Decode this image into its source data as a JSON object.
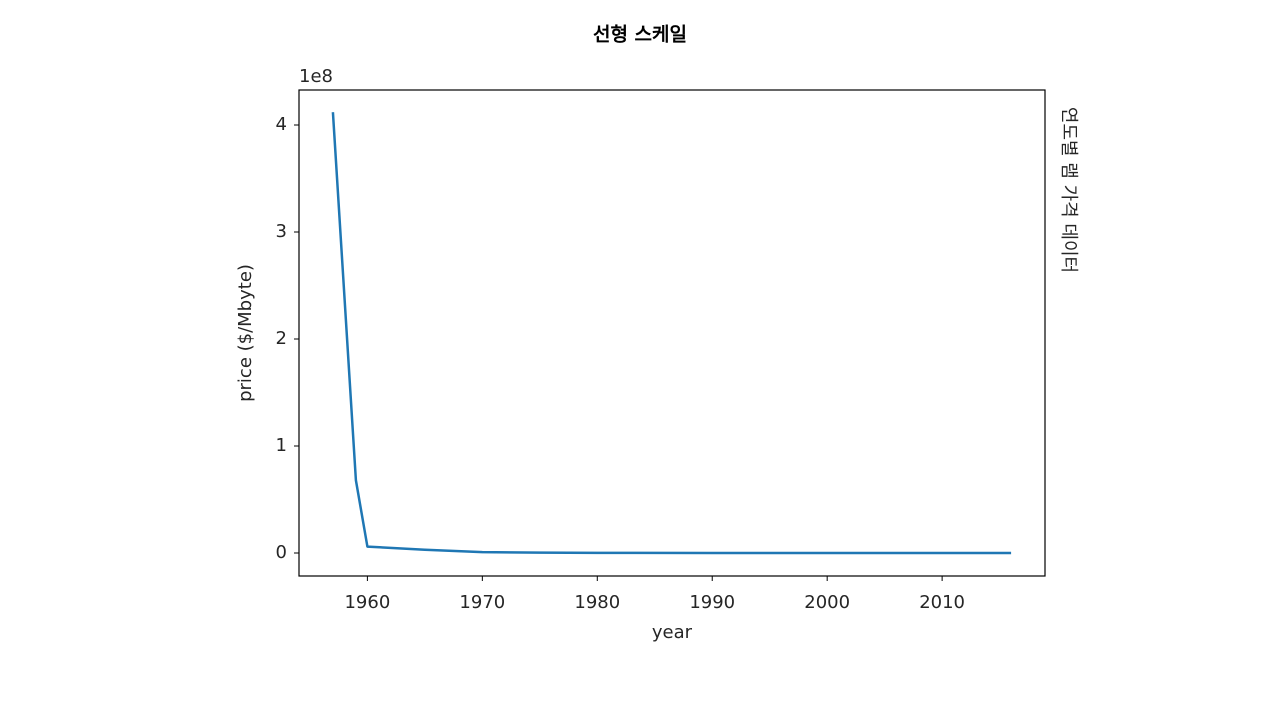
{
  "chart_data": {
    "type": "line",
    "title": "선형 스케일",
    "side_text": "연도별 램 가격 데이터",
    "xlabel": "year",
    "ylabel": "price ($/Mbyte)",
    "y_offset_text": "1e8",
    "x": [
      1957,
      1959,
      1960,
      1965,
      1970,
      1975,
      1980,
      1990,
      2000,
      2010,
      2016
    ],
    "series": [
      {
        "name": "price",
        "color": "#1f77b4",
        "values": [
          4.12,
          0.68,
          0.06,
          0.03,
          0.008,
          0.004,
          0.001,
          0,
          0,
          0,
          0
        ]
      }
    ],
    "xlim": [
      1954.05,
      2018.95
    ],
    "xticks": [
      1960,
      1970,
      1980,
      1990,
      2000,
      2010
    ],
    "ylim": [
      -0.215,
      4.327
    ],
    "yticks": [
      0,
      1,
      2,
      3,
      4
    ],
    "grid": false,
    "legend": false
  }
}
